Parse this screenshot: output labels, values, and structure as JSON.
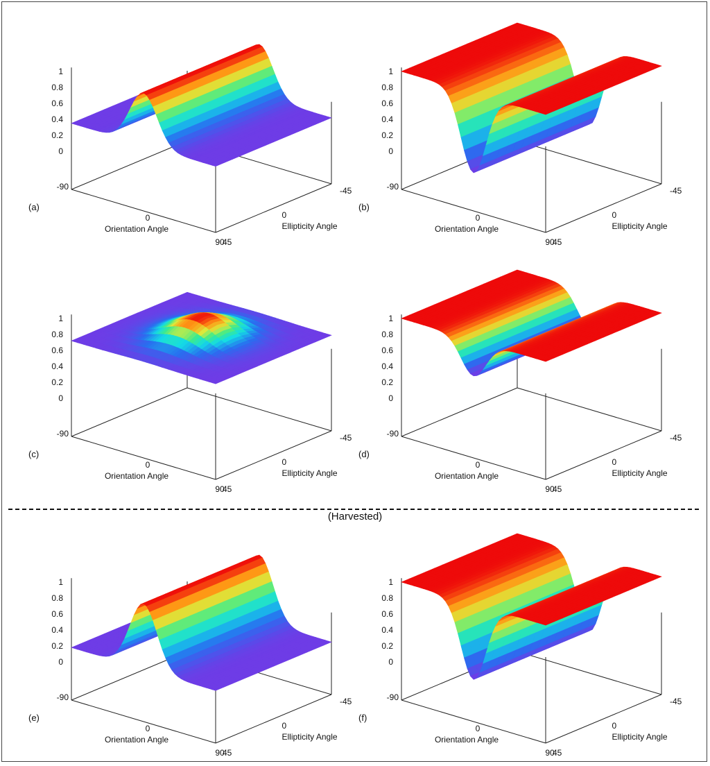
{
  "section_label": "(Harvested)",
  "chart_data": [
    {
      "type": "surface3d",
      "panel_label": "(a)",
      "xlabel": "Orientation Angle",
      "ylabel": "Ellipticity Angle",
      "x_ticks": [
        "-90",
        "0",
        "90"
      ],
      "y_ticks": [
        "45",
        "0",
        "-45"
      ],
      "z_ticks": [
        "0",
        "0.2",
        "0.4",
        "0.6",
        "0.8",
        "1"
      ],
      "xlim": [
        -90,
        90
      ],
      "ylim": [
        -45,
        45
      ],
      "zlim": [
        0,
        1
      ],
      "surface": {
        "shape": "ridge",
        "base": 0.35,
        "peak": 1.0,
        "ridge_center": 0,
        "width": 24
      }
    },
    {
      "type": "surface3d",
      "panel_label": "(b)",
      "xlabel": "Orientation Angle",
      "ylabel": "Ellipticity Angle",
      "x_ticks": [
        "-90",
        "0",
        "90"
      ],
      "y_ticks": [
        "45",
        "0",
        "-45"
      ],
      "z_ticks": [
        "0",
        "0.2",
        "0.4",
        "0.6",
        "0.8",
        "1"
      ],
      "xlim": [
        -90,
        90
      ],
      "ylim": [
        -45,
        45
      ],
      "zlim": [
        0,
        1
      ],
      "surface": {
        "shape": "valley",
        "base": 1.0,
        "trough": 0.0,
        "valley_center": 0,
        "width": 22
      }
    },
    {
      "type": "surface3d",
      "panel_label": "(c)",
      "xlabel": "Orientation Angle",
      "ylabel": "Ellipticity Angle",
      "x_ticks": [
        "-90",
        "0",
        "90"
      ],
      "y_ticks": [
        "45",
        "0",
        "-45"
      ],
      "z_ticks": [
        "0",
        "0.2",
        "0.4",
        "0.6",
        "0.8",
        "1"
      ],
      "xlim": [
        -90,
        90
      ],
      "ylim": [
        -45,
        45
      ],
      "zlim": [
        0,
        1
      ],
      "surface": {
        "shape": "bump",
        "base": 0.72,
        "peak": 1.0,
        "width": 28
      }
    },
    {
      "type": "surface3d",
      "panel_label": "(d)",
      "xlabel": "Orientation Angle",
      "ylabel": "Ellipticity Angle",
      "x_ticks": [
        "-90",
        "0",
        "90"
      ],
      "y_ticks": [
        "45",
        "0",
        "-45"
      ],
      "z_ticks": [
        "0",
        "0.2",
        "0.4",
        "0.6",
        "0.8",
        "1"
      ],
      "xlim": [
        -90,
        90
      ],
      "ylim": [
        -45,
        45
      ],
      "zlim": [
        0,
        1
      ],
      "surface": {
        "shape": "valley",
        "base": 1.0,
        "trough": 0.55,
        "valley_center": 0,
        "width": 22
      }
    },
    {
      "type": "surface3d",
      "panel_label": "(e)",
      "xlabel": "Orientation Angle",
      "ylabel": "Ellipticity Angle",
      "x_ticks": [
        "-90",
        "0",
        "90"
      ],
      "y_ticks": [
        "45",
        "0",
        "-45"
      ],
      "z_ticks": [
        "0",
        "0.2",
        "0.4",
        "0.6",
        "0.8",
        "1"
      ],
      "xlim": [
        -90,
        90
      ],
      "ylim": [
        -45,
        45
      ],
      "zlim": [
        0,
        1
      ],
      "surface": {
        "shape": "ridge",
        "base": 0.18,
        "peak": 1.0,
        "ridge_center": 0,
        "width": 24
      }
    },
    {
      "type": "surface3d",
      "panel_label": "(f)",
      "xlabel": "Orientation Angle",
      "ylabel": "Ellipticity Angle",
      "x_ticks": [
        "-90",
        "0",
        "90"
      ],
      "y_ticks": [
        "45",
        "0",
        "-45"
      ],
      "z_ticks": [
        "0",
        "0.2",
        "0.4",
        "0.6",
        "0.8",
        "1"
      ],
      "xlim": [
        -90,
        90
      ],
      "ylim": [
        -45,
        45
      ],
      "zlim": [
        0,
        1
      ],
      "surface": {
        "shape": "valley",
        "base": 1.0,
        "trough": 0.05,
        "valley_center": 0,
        "width": 22
      }
    }
  ]
}
